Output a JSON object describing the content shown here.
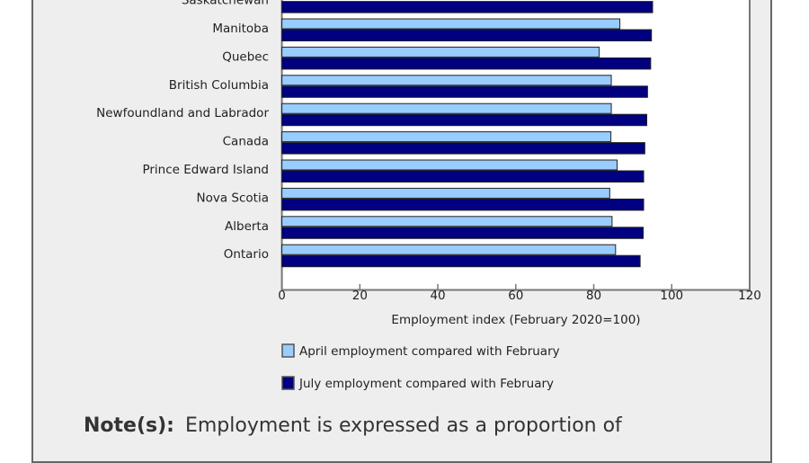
{
  "chart_data": {
    "type": "bar",
    "orientation": "horizontal",
    "categories": [
      "Saskatchewan",
      "Manitoba",
      "Quebec",
      "British Columbia",
      "Newfoundland and Labrador",
      "Canada",
      "Prince Edward Island",
      "Nova Scotia",
      "Alberta",
      "Ontario"
    ],
    "series": [
      {
        "name": "April employment compared with February",
        "color": "#99ccff",
        "values": [
          null,
          86.7,
          81.4,
          84.5,
          84.5,
          84.4,
          86.0,
          84.1,
          84.7,
          85.6
        ]
      },
      {
        "name": "July employment compared with February",
        "color": "#000080",
        "values": [
          95.1,
          94.8,
          94.6,
          93.8,
          93.6,
          93.1,
          92.8,
          92.8,
          92.7,
          91.9
        ]
      }
    ],
    "xlabel": "Employment index (February 2020=100)",
    "xlim": [
      0,
      120
    ],
    "xticks": [
      "0",
      "20",
      "40",
      "60",
      "80",
      "100",
      "120"
    ],
    "grid": false,
    "legend_position": "bottom"
  },
  "note": {
    "label": "Note(s):",
    "text": "Employment is expressed as a proportion of"
  }
}
